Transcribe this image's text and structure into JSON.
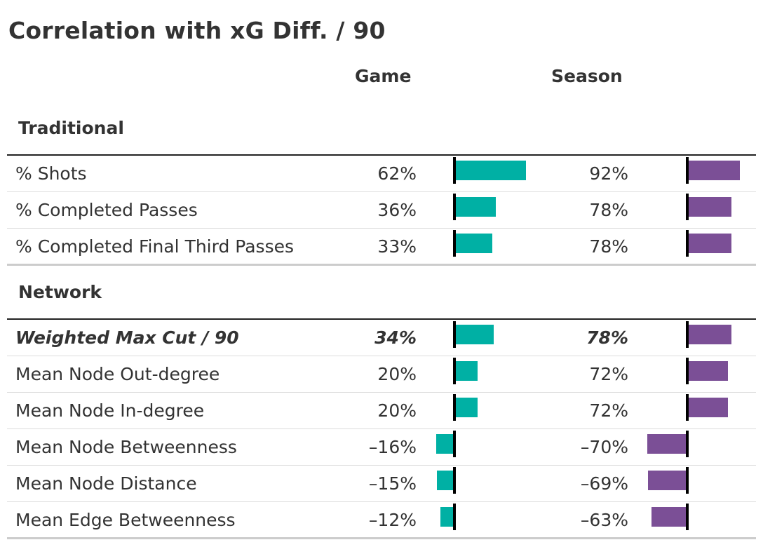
{
  "title": "Correlation with xG Diff. / 90",
  "columns": {
    "game": "Game",
    "season": "Season"
  },
  "colors": {
    "game": "#00b0a4",
    "season": "#7b4f96"
  },
  "chart_data": {
    "type": "table",
    "title": "Correlation with xG Diff. / 90",
    "columns": [
      "Game",
      "Season"
    ],
    "groups": [
      {
        "name": "Traditional",
        "rows": [
          {
            "metric": "% Shots",
            "game": 62,
            "season": 92,
            "game_label": "62%",
            "season_label": "92%",
            "highlight": false
          },
          {
            "metric": "% Completed Passes",
            "game": 36,
            "season": 78,
            "game_label": "36%",
            "season_label": "78%",
            "highlight": false
          },
          {
            "metric": "% Completed Final Third Passes",
            "game": 33,
            "season": 78,
            "game_label": "33%",
            "season_label": "78%",
            "highlight": false
          }
        ]
      },
      {
        "name": "Network",
        "rows": [
          {
            "metric": "Weighted Max Cut / 90",
            "game": 34,
            "season": 78,
            "game_label": "34%",
            "season_label": "78%",
            "highlight": true
          },
          {
            "metric": "Mean Node Out-degree",
            "game": 20,
            "season": 72,
            "game_label": "20%",
            "season_label": "72%",
            "highlight": false
          },
          {
            "metric": "Mean Node In-degree",
            "game": 20,
            "season": 72,
            "game_label": "20%",
            "season_label": "72%",
            "highlight": false
          },
          {
            "metric": "Mean Node Betweenness",
            "game": -16,
            "season": -70,
            "game_label": "–16%",
            "season_label": "–70%",
            "highlight": false
          },
          {
            "metric": "Mean Node Distance",
            "game": -15,
            "season": -69,
            "game_label": "–15%",
            "season_label": "–69%",
            "highlight": false
          },
          {
            "metric": "Mean Edge Betweenness",
            "game": -12,
            "season": -63,
            "game_label": "–12%",
            "season_label": "–63%",
            "highlight": false
          }
        ]
      }
    ]
  }
}
